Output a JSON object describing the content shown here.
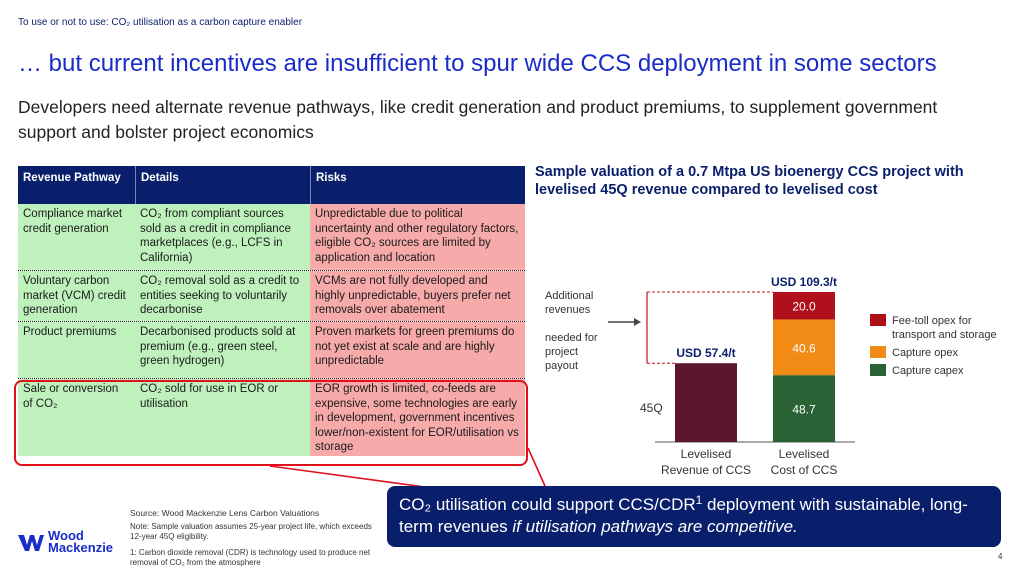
{
  "header": {
    "kicker": "To use or not to use: CO₂ utilisation as a carbon capture enabler",
    "headline": "… but current incentives are insufficient to spur wide CCS deployment in some sectors",
    "subhead": "Developers need alternate revenue pathways, like credit generation and product premiums, to supplement government support and bolster project economics"
  },
  "table": {
    "headers": [
      "Revenue Pathway",
      "Details",
      "Risks"
    ],
    "rows": [
      {
        "pathway": "Compliance market credit generation",
        "details": "CO₂ from compliant sources sold as a credit in compliance marketplaces (e.g., LCFS in California)",
        "risks": "Unpredictable due to political uncertainty and other regulatory factors, eligible CO₂ sources are limited by application and location"
      },
      {
        "pathway": "Voluntary carbon market (VCM) credit generation",
        "details": "CO₂ removal sold as a credit to entities seeking to voluntarily decarbonise",
        "risks": "VCMs are not fully developed and highly unpredictable, buyers prefer net removals over abatement"
      },
      {
        "pathway": "Product premiums",
        "details": "Decarbonised products sold at premium (e.g., green steel, green hydrogen)",
        "risks": "Proven markets for green premiums do not yet exist at scale and are highly unpredictable"
      },
      {
        "pathway": "Sale or conversion of CO₂",
        "details": "CO₂ sold for use in EOR or utilisation",
        "risks": "EOR growth is limited, co-feeds are expensive, some technologies are early in development, government incentives lower/non-existent for EOR/utilisation vs storage"
      }
    ]
  },
  "chart_data": {
    "type": "bar",
    "title": "Sample valuation of a 0.7 Mtpa US bioenergy CCS project with levelised 45Q revenue compared to levelised cost",
    "categories": [
      "Levelised Revenue of CCS",
      "Levelised Cost of CCS"
    ],
    "series": [
      {
        "name": "45Q",
        "values": [
          57.4,
          0
        ],
        "color": "#5c1630"
      },
      {
        "name": "Capture capex",
        "values": [
          0,
          48.7
        ],
        "color": "#2a6236"
      },
      {
        "name": "Capture opex",
        "values": [
          0,
          40.6
        ],
        "color": "#f28a16"
      },
      {
        "name": "Fee-toll opex for transport and storage",
        "values": [
          0,
          20.0
        ],
        "color": "#b0101c"
      }
    ],
    "totals": [
      "USD 57.4/t",
      "USD 109.3/t"
    ],
    "data_labels": [
      "48.7",
      "40.6",
      "20.0"
    ],
    "annotation_top": "Additional revenues",
    "annotation_bottom": "needed for project payout",
    "revenue_label": "45Q",
    "legend": [
      "Fee-toll opex for transport and storage",
      "Capture opex",
      "Capture capex"
    ],
    "legend_position": "right",
    "ylim": [
      0,
      109.3
    ],
    "grid": false
  },
  "callout": {
    "text_a": "CO₂ utilisation could support CCS/CDR",
    "sup": "1",
    "text_b": " deployment with sustainable, long-term revenues ",
    "text_italic": "if utilisation pathways are competitive."
  },
  "footer": {
    "logo_line1": "Wood",
    "logo_line2": "Mackenzie",
    "source": "Source: Wood Mackenzie Lens Carbon Valuations",
    "note": "Note: Sample valuation assumes 25-year project life, which exceeds 12-year 45Q eligibility.",
    "footnote": "1: Carbon dioxide removal (CDR) is technology used to produce net removal of CO₂ from the atmosphere",
    "page": "4"
  },
  "colors": {
    "navy": "#0a1f6b",
    "accent_blue": "#1a2cc8",
    "risk_pink": "#f7aaaa",
    "detail_green": "#bff1bd",
    "highlight_red": "#e0111b"
  }
}
